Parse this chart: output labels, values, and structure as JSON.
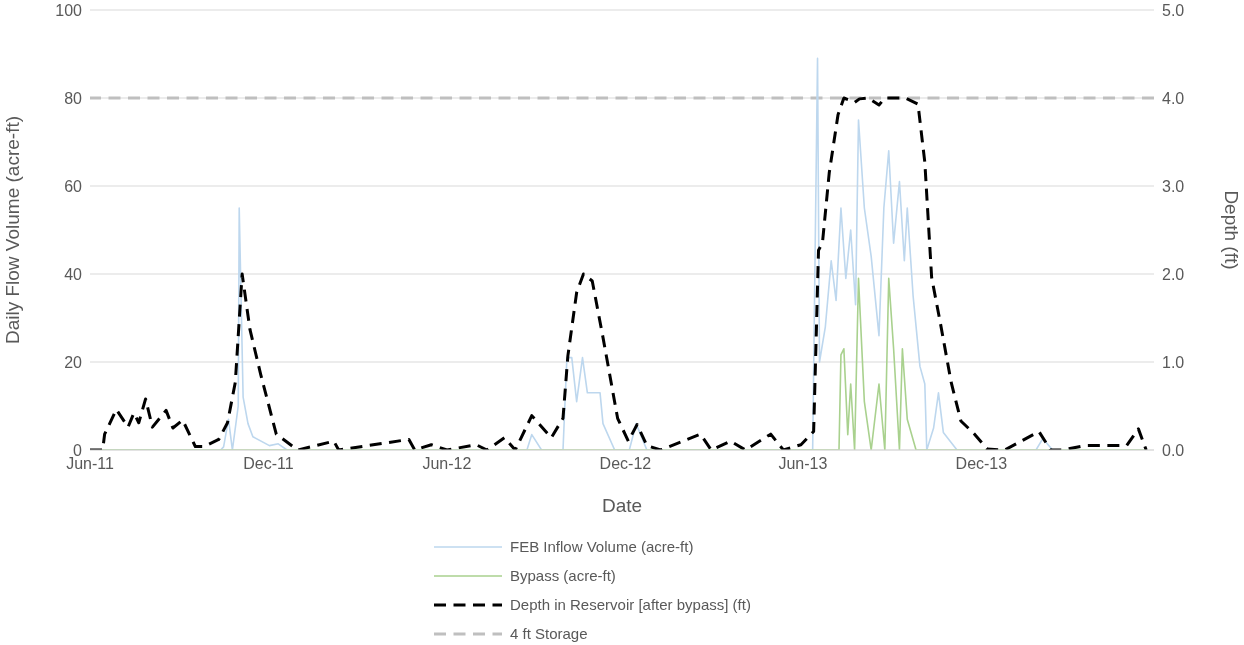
{
  "chart_data": {
    "type": "line",
    "xlabel": "Date",
    "ylabel": "Daily Flow Volume (acre-ft)",
    "y2label": "Depth (ft)",
    "xlim": [
      "2011-06-01",
      "2014-05-27"
    ],
    "xticks": [
      {
        "value": "2011-06-01",
        "label": "Jun-11"
      },
      {
        "value": "2011-12-01",
        "label": "Dec-11"
      },
      {
        "value": "2012-06-01",
        "label": "Jun-12"
      },
      {
        "value": "2012-12-01",
        "label": "Dec-12"
      },
      {
        "value": "2013-06-01",
        "label": "Jun-13"
      },
      {
        "value": "2013-12-01",
        "label": "Dec-13"
      }
    ],
    "ylim": [
      0,
      100
    ],
    "yticks": [
      0,
      20,
      40,
      60,
      80,
      100
    ],
    "y2lim": [
      0,
      5
    ],
    "y2ticks": [
      {
        "value": 0,
        "label": "0.0"
      },
      {
        "value": 1,
        "label": "1.0"
      },
      {
        "value": 2,
        "label": "2.0"
      },
      {
        "value": 3,
        "label": "3.0"
      },
      {
        "value": 4,
        "label": "4.0"
      },
      {
        "value": 5,
        "label": "5.0"
      }
    ],
    "grid": "y",
    "legend": "bottom",
    "marker": "none",
    "series": [
      {
        "name": "FEB Inflow Volume (acre-ft)",
        "color": "#bdd7ee",
        "x": [
          "2011-06-01",
          "2011-10-13",
          "2011-10-16",
          "2011-10-21",
          "2011-10-25",
          "2011-10-31",
          "2011-11-01",
          "2011-11-05",
          "2011-11-10",
          "2011-11-15",
          "2011-12-02",
          "2011-12-11",
          "2011-12-20",
          "2012-08-22",
          "2012-08-27",
          "2012-09-06",
          "2012-09-28",
          "2012-10-02",
          "2012-10-07",
          "2012-10-12",
          "2012-10-18",
          "2012-10-23",
          "2012-11-05",
          "2012-11-08",
          "2012-11-20",
          "2012-12-05",
          "2012-12-12",
          "2012-12-23",
          "2013-06-11",
          "2013-06-16",
          "2013-06-18",
          "2013-06-24",
          "2013-06-30",
          "2013-07-05",
          "2013-07-10",
          "2013-07-15",
          "2013-07-20",
          "2013-07-25",
          "2013-07-28",
          "2013-08-03",
          "2013-08-10",
          "2013-08-18",
          "2013-08-23",
          "2013-08-28",
          "2013-09-02",
          "2013-09-08",
          "2013-09-13",
          "2013-09-16",
          "2013-09-22",
          "2013-09-29",
          "2013-10-04",
          "2013-10-06",
          "2013-10-13",
          "2013-10-18",
          "2013-10-23",
          "2013-11-06",
          "2014-01-26",
          "2014-02-02",
          "2014-02-12",
          "2014-05-19"
        ],
        "values": [
          0,
          0,
          0.7,
          7,
          0,
          10,
          55,
          12,
          6,
          3,
          1,
          1.4,
          0,
          0,
          3.5,
          0,
          0,
          21,
          21,
          11,
          21,
          13,
          13,
          6,
          0,
          0,
          6,
          0,
          0,
          89,
          20,
          28,
          43,
          34,
          55,
          39,
          50,
          33,
          75,
          55,
          44,
          26,
          55,
          68,
          47,
          61,
          43,
          55,
          35,
          19,
          15,
          0,
          5,
          13,
          4,
          0,
          0,
          2.6,
          0,
          0
        ]
      },
      {
        "name": "Bypass (acre-ft)",
        "color": "#a9d18e",
        "x": [
          "2011-06-01",
          "2013-07-08",
          "2013-07-10",
          "2013-07-13",
          "2013-07-17",
          "2013-07-20",
          "2013-07-24",
          "2013-07-28",
          "2013-08-03",
          "2013-08-10",
          "2013-08-18",
          "2013-08-24",
          "2013-08-28",
          "2013-09-02",
          "2013-09-08",
          "2013-09-11",
          "2013-09-16",
          "2013-09-25",
          "2014-05-19"
        ],
        "values": [
          0,
          0,
          21.6,
          23,
          3.5,
          15,
          0,
          39,
          11,
          0,
          15,
          0,
          39,
          23,
          0,
          23,
          7,
          0,
          0
        ]
      },
      {
        "name": "Depth in Reservoir [after bypass] (ft)",
        "color": "#000000",
        "axis": "y2",
        "line_style": "dashed",
        "x": [
          "2011-06-01",
          "2011-06-14",
          "2011-06-16",
          "2011-06-28",
          "2011-07-10",
          "2011-07-16",
          "2011-07-21",
          "2011-07-28",
          "2011-08-04",
          "2011-08-18",
          "2011-08-25",
          "2011-09-04",
          "2011-09-17",
          "2011-09-26",
          "2011-10-11",
          "2011-10-20",
          "2011-10-28",
          "2011-11-04",
          "2011-11-12",
          "2011-11-23",
          "2011-12-09",
          "2011-12-31",
          "2012-02-06",
          "2012-02-11",
          "2012-04-23",
          "2012-04-29",
          "2012-05-16",
          "2012-06-01",
          "2012-07-01",
          "2012-07-12",
          "2012-07-30",
          "2012-08-10",
          "2012-08-27",
          "2012-09-16",
          "2012-09-28",
          "2012-10-03",
          "2012-10-12",
          "2012-10-19",
          "2012-10-28",
          "2012-11-08",
          "2012-11-23",
          "2012-12-04",
          "2012-12-13",
          "2012-12-23",
          "2013-01-06",
          "2013-02-16",
          "2013-02-27",
          "2013-03-19",
          "2013-04-03",
          "2013-04-29",
          "2013-05-12",
          "2013-05-30",
          "2013-06-12",
          "2013-06-17",
          "2013-06-21",
          "2013-06-28",
          "2013-07-07",
          "2013-07-13",
          "2013-07-24",
          "2013-07-29",
          "2013-08-07",
          "2013-08-18",
          "2013-08-24",
          "2013-09-14",
          "2013-09-27",
          "2013-10-04",
          "2013-10-11",
          "2013-10-20",
          "2013-10-31",
          "2013-11-10",
          "2013-11-24",
          "2013-12-07",
          "2013-12-25",
          "2014-01-29",
          "2014-02-10",
          "2014-02-22",
          "2014-03-18",
          "2014-04-29",
          "2014-05-11",
          "2014-05-19"
        ],
        "values": [
          0,
          0,
          0.18,
          0.46,
          0.26,
          0.42,
          0.31,
          0.58,
          0.26,
          0.45,
          0.25,
          0.34,
          0.04,
          0.04,
          0.12,
          0.31,
          0.77,
          2.0,
          1.37,
          0.86,
          0.18,
          0,
          0.1,
          0,
          0.12,
          0,
          0.06,
          0,
          0.06,
          0,
          0.14,
          0,
          0.39,
          0.14,
          0.36,
          1.07,
          1.79,
          2.0,
          1.92,
          1.28,
          0.36,
          0.1,
          0.29,
          0.05,
          0,
          0.18,
          0,
          0.1,
          0,
          0.18,
          0,
          0.06,
          0.21,
          2.27,
          2.35,
          3.15,
          3.81,
          4.0,
          3.95,
          3.99,
          4.0,
          3.92,
          4.0,
          4.0,
          3.93,
          3.27,
          1.96,
          1.44,
          0.77,
          0.33,
          0.18,
          0.01,
          0,
          0.21,
          0,
          0,
          0.05,
          0.05,
          0.24,
          0
        ]
      }
    ],
    "ref_lines": [
      {
        "axis": "y2",
        "value": 4,
        "label": "4 ft Storage",
        "color": "#bfbfbf",
        "line_style": "dashed"
      }
    ]
  }
}
